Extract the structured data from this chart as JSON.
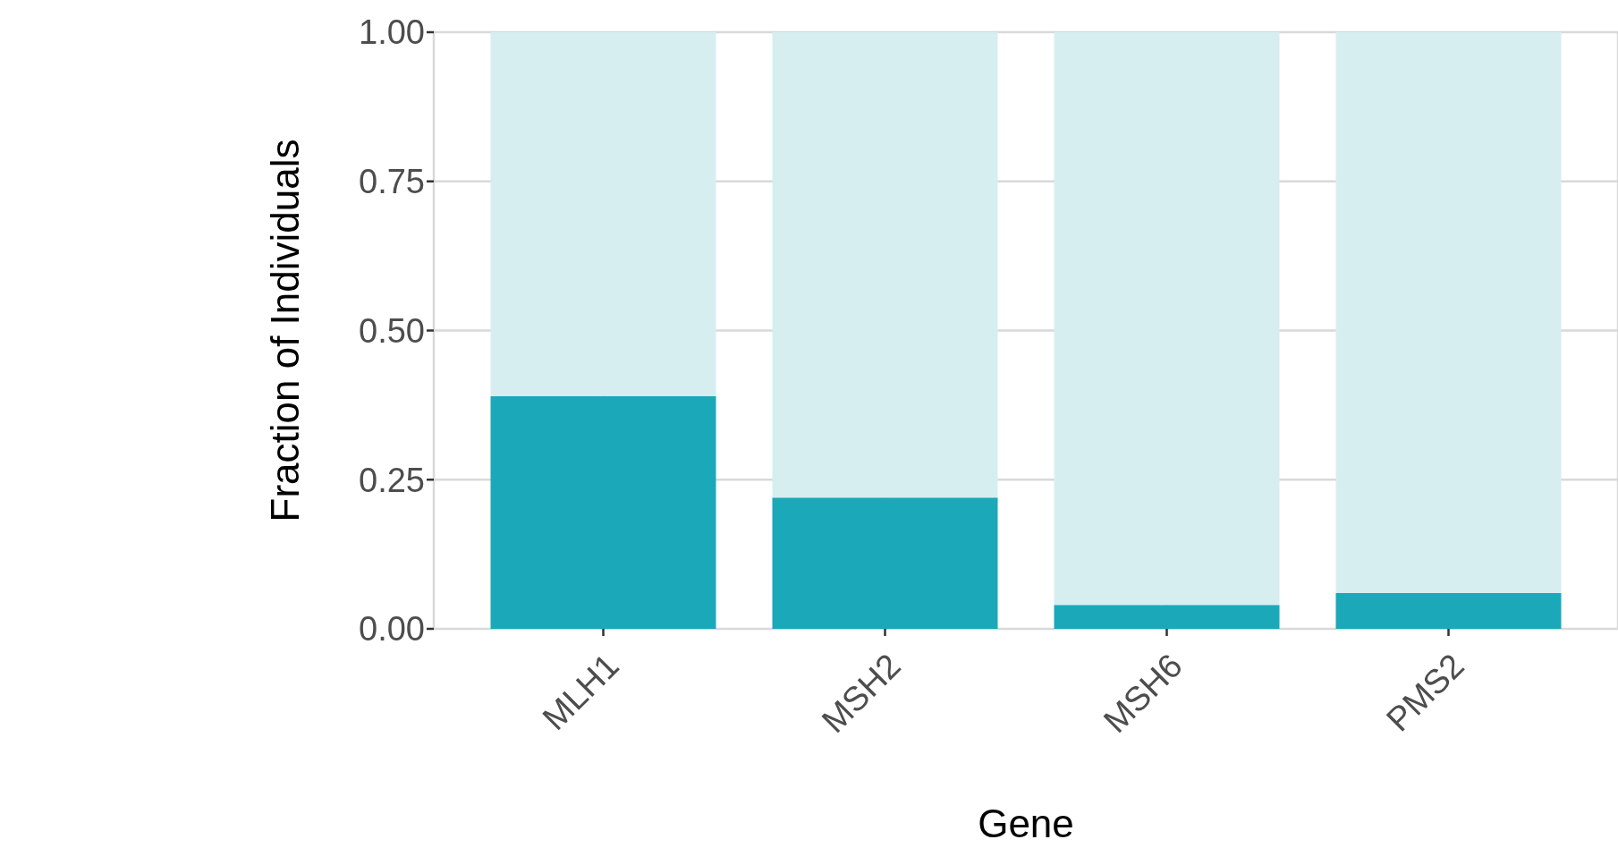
{
  "chart_data": {
    "type": "bar",
    "stacked": true,
    "xlabel": "Gene",
    "ylabel": "Fraction of Individuals",
    "categories": [
      "MLH1",
      "MSH2",
      "MSH6",
      "PMS2"
    ],
    "series": [
      {
        "color": "#1ba8b8",
        "values": [
          0.39,
          0.22,
          0.04,
          0.06
        ]
      },
      {
        "color": "#d7eef1",
        "values": [
          0.61,
          0.78,
          0.96,
          0.94
        ]
      }
    ],
    "ylim": [
      0,
      1
    ],
    "yticks": [
      {
        "value": 0,
        "label": "0.00"
      },
      {
        "value": 0.25,
        "label": "0.25"
      },
      {
        "value": 0.5,
        "label": "0.50"
      },
      {
        "value": 0.75,
        "label": "0.75"
      },
      {
        "value": 1,
        "label": "1.00"
      }
    ],
    "grid": true
  }
}
